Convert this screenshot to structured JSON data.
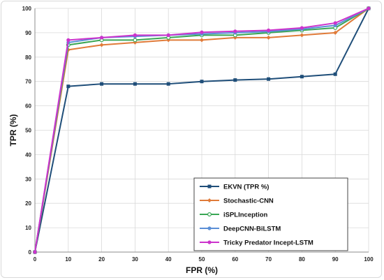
{
  "chart_data": {
    "type": "line",
    "xlabel": "FPR (%)",
    "ylabel": "TPR (%)",
    "xlim": [
      0,
      100
    ],
    "ylim": [
      0,
      100
    ],
    "x_ticks": [
      0,
      10,
      20,
      30,
      40,
      50,
      60,
      70,
      80,
      90,
      100
    ],
    "y_ticks": [
      0,
      10,
      20,
      30,
      40,
      50,
      60,
      70,
      80,
      90,
      100
    ],
    "grid": true,
    "legend_position": "bottom-right",
    "x": [
      0,
      10,
      20,
      30,
      40,
      50,
      60,
      70,
      80,
      90,
      100
    ],
    "series": [
      {
        "name": "EKVN (TPR %)",
        "color": "#1f4e79",
        "marker": "square",
        "values": [
          0,
          68,
          69,
          69,
          69,
          70,
          70.6,
          71,
          72,
          73,
          100
        ]
      },
      {
        "name": "Stochastic-CNN",
        "color": "#e07b39",
        "marker": "diamond",
        "values": [
          0,
          83,
          85,
          86,
          87,
          87,
          88,
          88,
          89,
          90,
          100
        ]
      },
      {
        "name": "iSPLInception",
        "color": "#3aa655",
        "marker": "circle-open",
        "values": [
          0,
          85,
          87,
          87,
          88,
          89,
          89,
          90,
          91,
          92,
          100
        ]
      },
      {
        "name": "DeepCNN-BiLSTM",
        "color": "#5b8fd6",
        "marker": "circle",
        "values": [
          0,
          86,
          88,
          88.5,
          89,
          89.5,
          90,
          90.5,
          91.5,
          93,
          100
        ]
      },
      {
        "name": "Tricky Predator Incept-LSTM",
        "color": "#cc33cc",
        "marker": "circle",
        "values": [
          0,
          87,
          88,
          89,
          89,
          90.2,
          90.6,
          91,
          92,
          94,
          100
        ]
      }
    ]
  }
}
